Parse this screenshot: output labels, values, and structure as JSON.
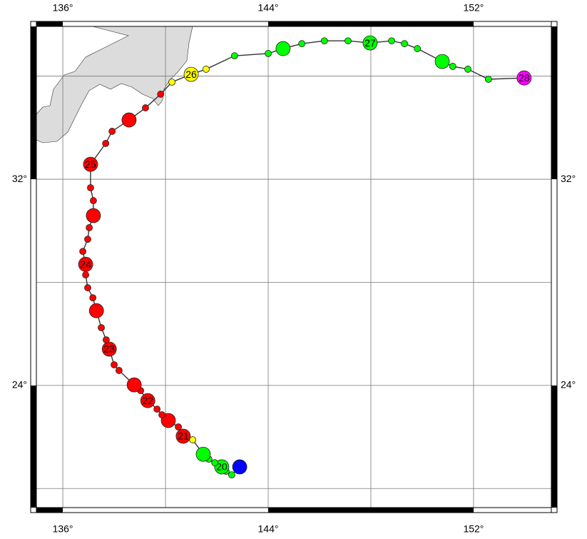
{
  "map": {
    "xlim": [
      134.97,
      155.03
    ],
    "ylim": [
      19.26,
      37.93
    ],
    "xticks": [
      {
        "value": 136,
        "label": "136°"
      },
      {
        "value": 144,
        "label": "144°"
      },
      {
        "value": 152,
        "label": "152°"
      }
    ],
    "yticks": [
      {
        "value": 24,
        "label": "24°"
      },
      {
        "value": 32,
        "label": "32°"
      }
    ],
    "xgrid": [
      136,
      140,
      144,
      148,
      152
    ],
    "ygrid": [
      20,
      24,
      28,
      32,
      36
    ],
    "land_color": "#dcdcdc",
    "track_color": "#333333",
    "points": [
      {
        "lon": 142.89,
        "lat": 20.84,
        "color": "#0000ff",
        "major": true
      },
      {
        "lon": 142.58,
        "lat": 20.53,
        "color": "#00ff00",
        "major": false
      },
      {
        "lon": 142.36,
        "lat": 20.67,
        "color": "#00ff00",
        "major": false
      },
      {
        "lon": 142.19,
        "lat": 20.84,
        "color": "#00ff00",
        "major": true,
        "label": "20"
      },
      {
        "lon": 141.92,
        "lat": 21.0,
        "color": "#00ff00",
        "major": false
      },
      {
        "lon": 141.69,
        "lat": 21.14,
        "color": "#00ff00",
        "major": false
      },
      {
        "lon": 141.47,
        "lat": 21.33,
        "color": "#00ff00",
        "major": true
      },
      {
        "lon": 141.06,
        "lat": 21.89,
        "color": "#ffff00",
        "major": false
      },
      {
        "lon": 140.69,
        "lat": 22.03,
        "color": "#ff0000",
        "major": true,
        "label": "21"
      },
      {
        "lon": 140.5,
        "lat": 22.39,
        "color": "#ff0000",
        "major": false
      },
      {
        "lon": 140.11,
        "lat": 22.64,
        "color": "#ff0000",
        "major": true
      },
      {
        "lon": 139.86,
        "lat": 22.86,
        "color": "#ff0000",
        "major": false
      },
      {
        "lon": 139.67,
        "lat": 23.08,
        "color": "#ff0000",
        "major": false
      },
      {
        "lon": 139.31,
        "lat": 23.41,
        "color": "#ff0000",
        "major": true,
        "label": "22"
      },
      {
        "lon": 139.03,
        "lat": 23.8,
        "color": "#ff0000",
        "major": false
      },
      {
        "lon": 138.78,
        "lat": 24.02,
        "color": "#ff0000",
        "major": true
      },
      {
        "lon": 138.19,
        "lat": 24.58,
        "color": "#ff0000",
        "major": false
      },
      {
        "lon": 138.0,
        "lat": 24.8,
        "color": "#ff0000",
        "major": false
      },
      {
        "lon": 137.81,
        "lat": 25.41,
        "color": "#ff0000",
        "major": true,
        "label": "23"
      },
      {
        "lon": 137.69,
        "lat": 25.77,
        "color": "#ff0000",
        "major": false
      },
      {
        "lon": 137.5,
        "lat": 26.24,
        "color": "#ff0000",
        "major": false
      },
      {
        "lon": 137.31,
        "lat": 26.9,
        "color": "#ff0000",
        "major": true
      },
      {
        "lon": 137.17,
        "lat": 27.4,
        "color": "#ff0000",
        "major": false
      },
      {
        "lon": 136.97,
        "lat": 27.79,
        "color": "#ff0000",
        "major": false
      },
      {
        "lon": 136.89,
        "lat": 28.29,
        "color": "#ff0000",
        "major": false
      },
      {
        "lon": 136.89,
        "lat": 28.7,
        "color": "#ff0000",
        "major": true,
        "label": "24"
      },
      {
        "lon": 136.78,
        "lat": 29.2,
        "color": "#ff0000",
        "major": false
      },
      {
        "lon": 136.97,
        "lat": 29.67,
        "color": "#ff0000",
        "major": false
      },
      {
        "lon": 137.03,
        "lat": 30.12,
        "color": "#ff0000",
        "major": false
      },
      {
        "lon": 137.19,
        "lat": 30.59,
        "color": "#ff0000",
        "major": true
      },
      {
        "lon": 137.19,
        "lat": 31.17,
        "color": "#ff0000",
        "major": false
      },
      {
        "lon": 137.08,
        "lat": 31.67,
        "color": "#ff0000",
        "major": false
      },
      {
        "lon": 137.08,
        "lat": 32.58,
        "color": "#ff0000",
        "major": true,
        "label": "25"
      },
      {
        "lon": 137.67,
        "lat": 33.39,
        "color": "#ff0000",
        "major": false
      },
      {
        "lon": 137.92,
        "lat": 33.86,
        "color": "#ff0000",
        "major": false
      },
      {
        "lon": 138.58,
        "lat": 34.3,
        "color": "#ff0000",
        "major": true
      },
      {
        "lon": 139.22,
        "lat": 34.77,
        "color": "#ff0000",
        "major": false
      },
      {
        "lon": 139.81,
        "lat": 35.3,
        "color": "#ff0000",
        "major": false
      },
      {
        "lon": 140.25,
        "lat": 35.77,
        "color": "#ffff00",
        "major": false
      },
      {
        "lon": 141.0,
        "lat": 36.07,
        "color": "#ffff00",
        "major": true,
        "label": "26"
      },
      {
        "lon": 141.58,
        "lat": 36.27,
        "color": "#ffff00",
        "major": false
      },
      {
        "lon": 142.69,
        "lat": 36.79,
        "color": "#00ff00",
        "major": false
      },
      {
        "lon": 144.0,
        "lat": 36.88,
        "color": "#00ff00",
        "major": false
      },
      {
        "lon": 144.58,
        "lat": 37.07,
        "color": "#00ff00",
        "major": true
      },
      {
        "lon": 145.31,
        "lat": 37.26,
        "color": "#00ff00",
        "major": false
      },
      {
        "lon": 146.19,
        "lat": 37.37,
        "color": "#00ff00",
        "major": false
      },
      {
        "lon": 147.11,
        "lat": 37.37,
        "color": "#00ff00",
        "major": false
      },
      {
        "lon": 147.97,
        "lat": 37.29,
        "color": "#00ff00",
        "major": true,
        "label": "27"
      },
      {
        "lon": 148.81,
        "lat": 37.37,
        "color": "#00ff00",
        "major": false
      },
      {
        "lon": 149.31,
        "lat": 37.26,
        "color": "#00ff00",
        "major": false
      },
      {
        "lon": 149.81,
        "lat": 37.07,
        "color": "#00ff00",
        "major": false
      },
      {
        "lon": 150.78,
        "lat": 36.57,
        "color": "#00ff00",
        "major": true
      },
      {
        "lon": 151.19,
        "lat": 36.38,
        "color": "#00ff00",
        "major": false
      },
      {
        "lon": 151.78,
        "lat": 36.27,
        "color": "#00ff00",
        "major": false
      },
      {
        "lon": 152.58,
        "lat": 35.88,
        "color": "#00ff00",
        "major": false
      },
      {
        "lon": 153.97,
        "lat": 35.93,
        "color": "#ff00ff",
        "major": true,
        "label": "28"
      }
    ]
  }
}
